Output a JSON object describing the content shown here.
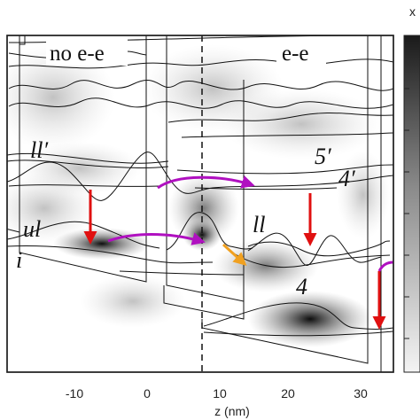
{
  "panel_labels": {
    "left": "no e-e",
    "right": "e-e"
  },
  "state_labels": {
    "ll_prime": "ll′",
    "ul": "ul",
    "i": "i",
    "ll": "ll",
    "five_prime": "5′",
    "four_prime": "4′",
    "four": "4"
  },
  "x_axis": {
    "label": "z (nm)",
    "ticks": [
      "-10",
      "0",
      "10",
      "20",
      "30"
    ]
  },
  "colorbar": {
    "label_fragment": "x"
  },
  "colors": {
    "transition_arrow": "#e01010",
    "tunneling_arrow": "#b010c0",
    "scattering_arrow": "#f0a020",
    "curve": "#111111"
  }
}
